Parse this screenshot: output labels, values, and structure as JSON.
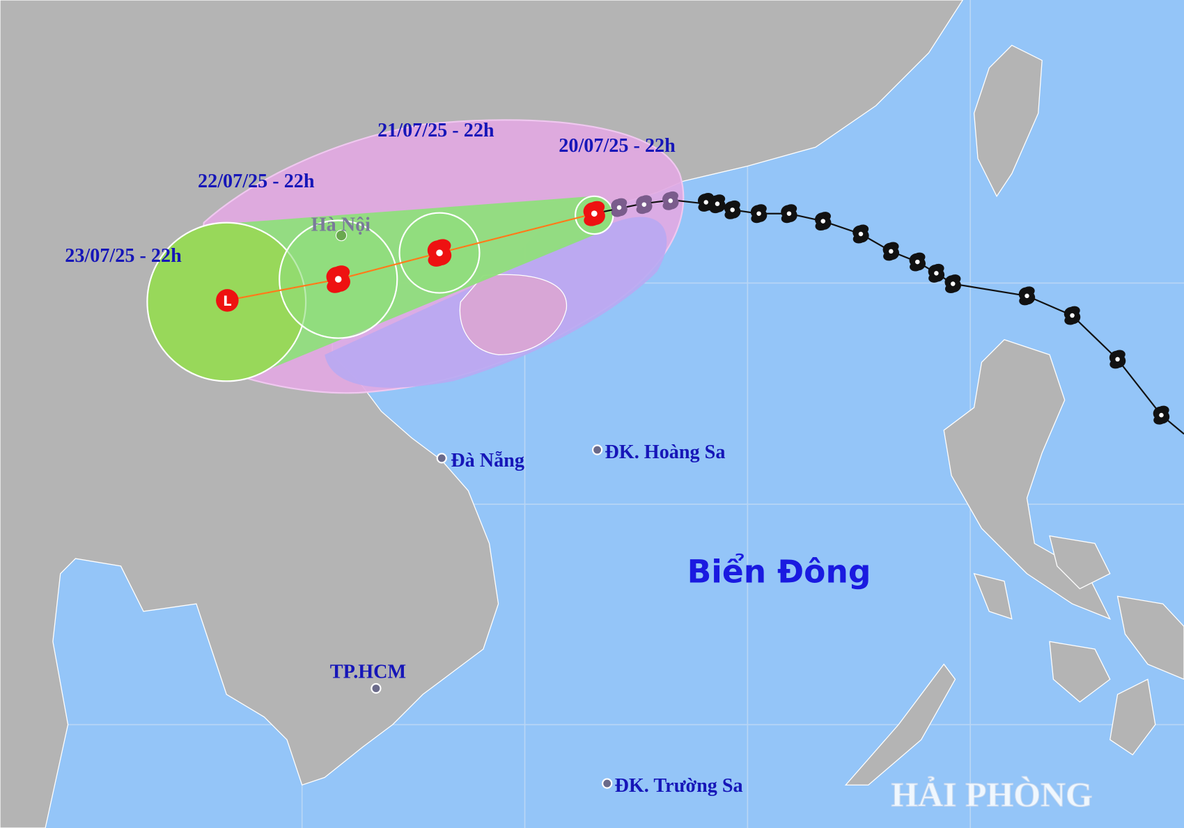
{
  "forecast_points": [
    {
      "time": "20/07/25 - 22h"
    },
    {
      "time": "21/07/25 - 22h"
    },
    {
      "time": "22/07/25 - 22h"
    },
    {
      "time": "23/07/25 - 22h"
    }
  ],
  "places": [
    {
      "name": "Hà Nội"
    },
    {
      "name": "Đà Nẵng"
    },
    {
      "name": "ĐK. Hoàng Sa"
    },
    {
      "name": "TP.HCM"
    },
    {
      "name": "ĐK. Trường Sa"
    }
  ],
  "sea": "Biển Đông",
  "watermark": "HẢI PHÒNG"
}
